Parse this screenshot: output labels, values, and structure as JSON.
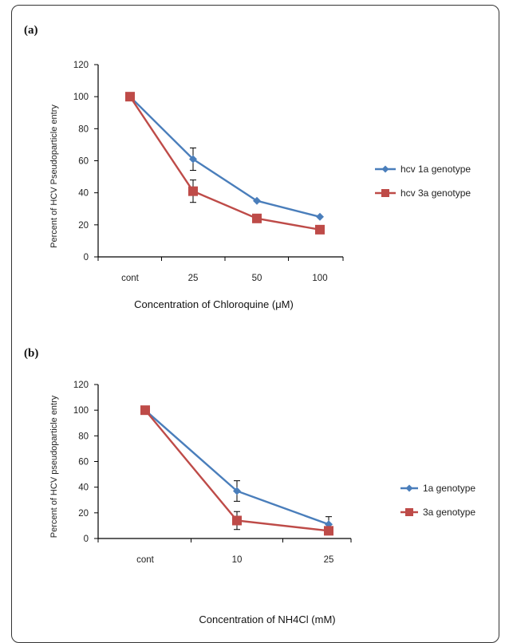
{
  "colors": {
    "series1": "#4a7ebb",
    "series2": "#be4b48",
    "axis": "#000000",
    "error_bar": "#000000"
  },
  "chart_data": [
    {
      "panel": "(a)",
      "type": "line",
      "categories": [
        "cont",
        "25",
        "50",
        "100"
      ],
      "xlabel": "Concentration of Chloroquine (μM)",
      "ylabel": "Percent of HCV Pseudoparticle entry",
      "ylim": [
        0,
        120
      ],
      "yticks": [
        "0",
        "20",
        "40",
        "60",
        "80",
        "100",
        "120"
      ],
      "grid": false,
      "legend_position": "right",
      "series": [
        {
          "name": "hcv 1a genotype",
          "marker": "diamond",
          "values": [
            100,
            61,
            35,
            25
          ],
          "errors": [
            0,
            7,
            0,
            0
          ]
        },
        {
          "name": "hcv 3a genotype",
          "marker": "square",
          "values": [
            100,
            41,
            24,
            17
          ],
          "errors": [
            0,
            7,
            0,
            0
          ]
        }
      ]
    },
    {
      "panel": "(b)",
      "type": "line",
      "categories": [
        "cont",
        "10",
        "25"
      ],
      "xlabel": "Concentration of NH4Cl (mM)",
      "ylabel": "Percent of HCV pseudoparticle entry",
      "ylim": [
        0,
        120
      ],
      "yticks": [
        "0",
        "20",
        "40",
        "60",
        "80",
        "100",
        "120"
      ],
      "grid": false,
      "legend_position": "right",
      "series": [
        {
          "name": "1a genotype",
          "marker": "diamond",
          "values": [
            100,
            37,
            11
          ],
          "errors": [
            0,
            8,
            6
          ]
        },
        {
          "name": "3a genotype",
          "marker": "square",
          "values": [
            100,
            14,
            6
          ],
          "errors": [
            0,
            7,
            0
          ]
        }
      ]
    }
  ]
}
